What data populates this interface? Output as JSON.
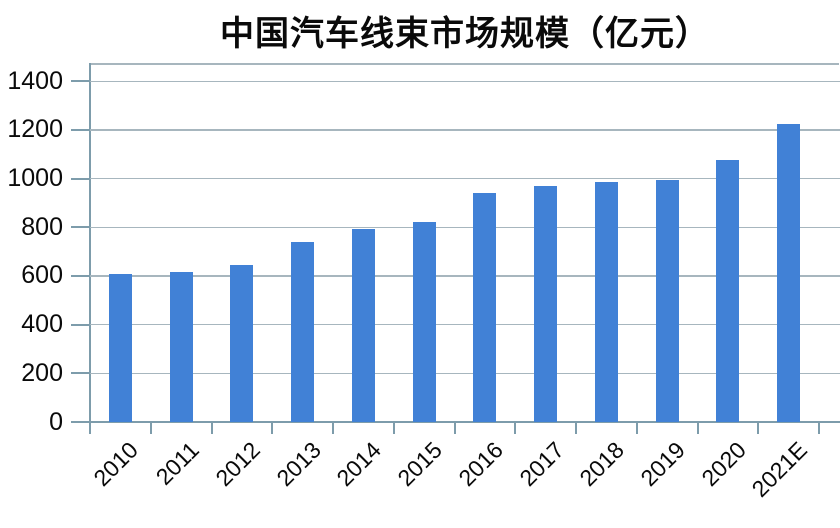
{
  "chart_data": {
    "type": "bar",
    "title": "中国汽车线束市场规模（亿元）",
    "categories": [
      "2010",
      "2011",
      "2012",
      "2013",
      "2014",
      "2015",
      "2016",
      "2017",
      "2018",
      "2019",
      "2020",
      "2021E"
    ],
    "values": [
      610,
      615,
      645,
      740,
      795,
      820,
      940,
      970,
      985,
      995,
      1075,
      1225
    ],
    "series_name": "市场规模",
    "unit": "亿元",
    "xlabel": "",
    "ylabel": "",
    "ylim": [
      0,
      1400
    ],
    "ytick_interval": 200,
    "yticks": [
      0,
      200,
      400,
      600,
      800,
      1000,
      1200,
      1400
    ],
    "grid": "horizontal",
    "legend_position": "none",
    "x_label_rotation_deg": -45,
    "colors": {
      "bar": "#4181d6",
      "gridline": "#a7b6be",
      "axis": "#7d9cab",
      "text": "#0a0a0a",
      "background": "#ffffff"
    }
  }
}
